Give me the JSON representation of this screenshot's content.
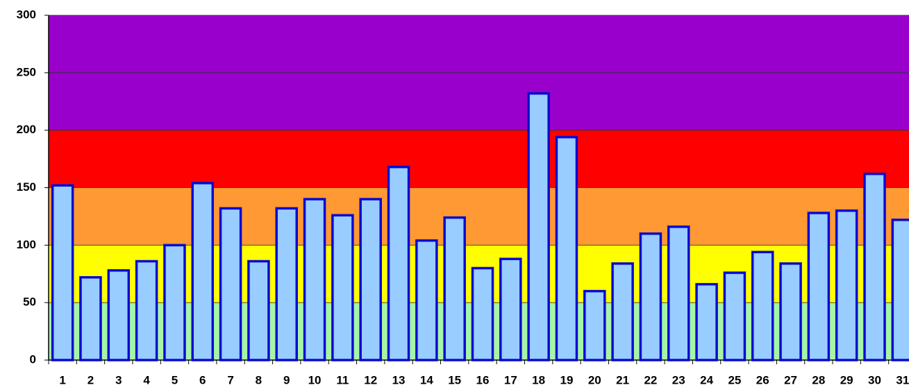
{
  "chart_data": {
    "type": "bar",
    "categories": [
      "1",
      "2",
      "3",
      "4",
      "5",
      "6",
      "7",
      "8",
      "9",
      "10",
      "11",
      "12",
      "13",
      "14",
      "15",
      "16",
      "17",
      "18",
      "19",
      "20",
      "21",
      "22",
      "23",
      "24",
      "25",
      "26",
      "27",
      "28",
      "29",
      "30",
      "31"
    ],
    "values": [
      152,
      72,
      78,
      86,
      100,
      154,
      132,
      86,
      132,
      140,
      126,
      140,
      168,
      104,
      124,
      80,
      88,
      232,
      194,
      60,
      84,
      110,
      116,
      66,
      76,
      94,
      84,
      128,
      130,
      162,
      122
    ],
    "color": "#99ccff",
    "edge_color": "#0a0ad0",
    "ylim": [
      0,
      300
    ],
    "yticks": [
      0,
      50,
      100,
      150,
      200,
      250,
      300
    ],
    "grid": true,
    "bands": [
      {
        "from": 0,
        "to": 50,
        "color": "#a6f5a6"
      },
      {
        "from": 50,
        "to": 100,
        "color": "#ffff00"
      },
      {
        "from": 100,
        "to": 150,
        "color": "#ff9933"
      },
      {
        "from": 150,
        "to": 200,
        "color": "#ff0000"
      },
      {
        "from": 200,
        "to": 300,
        "color": "#9900cc"
      }
    ]
  }
}
